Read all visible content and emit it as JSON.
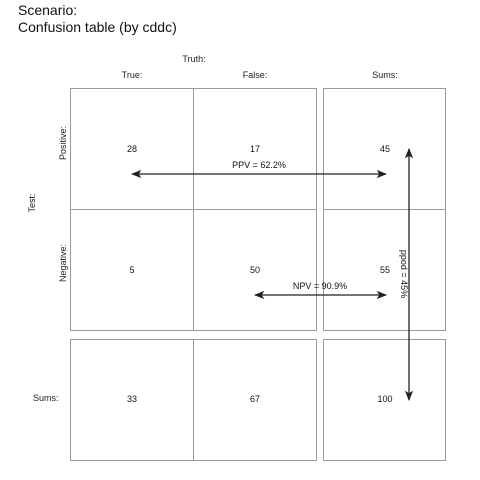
{
  "title": {
    "line1": "Scenario:",
    "line2": "Confusion table (by cddc)"
  },
  "header": {
    "truth": "Truth:",
    "col_true": "True:",
    "col_false": "False:",
    "col_sums": "Sums:"
  },
  "rows": {
    "test": "Test:",
    "positive": "Positive:",
    "negative": "Negative:",
    "sums": "Sums:"
  },
  "cells": {
    "tp": "28",
    "fp": "17",
    "pos_sum": "45",
    "fn": "5",
    "tn": "50",
    "neg_sum": "55",
    "true_sum": "33",
    "false_sum": "67",
    "total": "100"
  },
  "arrows": {
    "ppv": "PPV = 62.2%",
    "npv": "NPV = 90.9%",
    "ppod": "ppod = 45%"
  },
  "colors": {
    "border": "#9a9a9a",
    "arrow": "#222222"
  }
}
